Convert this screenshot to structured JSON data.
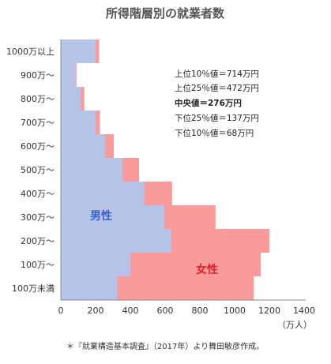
{
  "chart_data": {
    "type": "bar",
    "orientation": "horizontal",
    "stacked": false,
    "title": "所得階層別の就業者数",
    "categories": [
      "1000万以上",
      "900万〜",
      "800万〜",
      "700万〜",
      "600万〜",
      "500万〜",
      "400万〜",
      "300万〜",
      "200万〜",
      "100万〜",
      "100万未満"
    ],
    "series": [
      {
        "name": "女性",
        "color": "#f99b9b",
        "values": [
          220,
          90,
          135,
          225,
          305,
          450,
          640,
          890,
          1200,
          1150,
          1110
        ]
      },
      {
        "name": "男性",
        "color": "#b5c4e6",
        "values": [
          200,
          85,
          115,
          200,
          255,
          355,
          480,
          595,
          635,
          400,
          325
        ]
      }
    ],
    "xlabel": "（万人）",
    "xlim": [
      0,
      1400
    ],
    "xticks": [
      "0",
      "200",
      "400",
      "600",
      "800",
      "1000",
      "1200",
      "1400"
    ],
    "grid": false,
    "series_label_colors": {
      "男性": "#3a5fc8",
      "女性": "#e5202e"
    }
  },
  "stats": [
    {
      "text": "上位10％値＝714万円",
      "bold": false
    },
    {
      "text": "上位25％値＝472万円",
      "bold": false
    },
    {
      "text": "中央値＝276万円",
      "bold": true
    },
    {
      "text": "下位25％値＝137万円",
      "bold": false
    },
    {
      "text": "下位10％値＝68万円",
      "bold": false
    }
  ],
  "footnote": "＊『就業構造基本調査』（2017年）より舞田敏彦作成。"
}
